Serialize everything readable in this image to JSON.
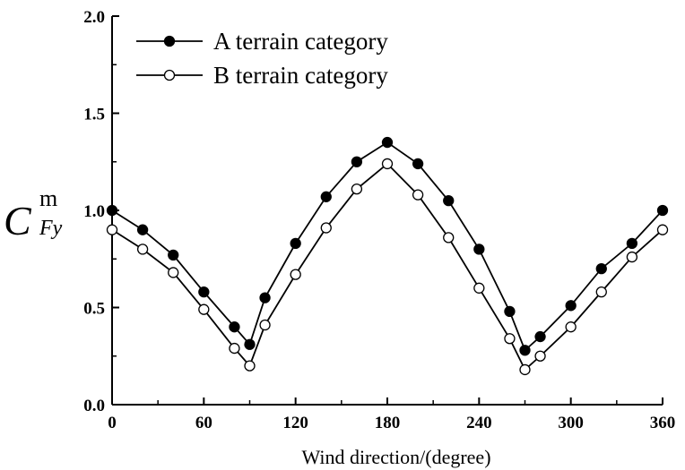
{
  "chart_data": {
    "type": "line",
    "xlabel": "Wind direction/(degree)",
    "ylabel": {
      "main": "C",
      "sup": "m",
      "sub": "Fy"
    },
    "xlim": [
      0,
      360
    ],
    "ylim": [
      0,
      2.0
    ],
    "xticks": [
      0,
      60,
      120,
      180,
      240,
      300,
      360
    ],
    "yticks": [
      "0.0",
      "0.5",
      "1.0",
      "1.5",
      "2.0"
    ],
    "grid": false,
    "legend_position": "top-left",
    "series": [
      {
        "name": "A terrain category",
        "marker": "filled-circle",
        "x": [
          0,
          20,
          40,
          60,
          80,
          90,
          100,
          120,
          140,
          160,
          180,
          200,
          220,
          240,
          260,
          270,
          280,
          300,
          320,
          340,
          360
        ],
        "y": [
          1.0,
          0.9,
          0.77,
          0.58,
          0.4,
          0.31,
          0.55,
          0.83,
          1.07,
          1.25,
          1.35,
          1.24,
          1.05,
          0.8,
          0.48,
          0.28,
          0.35,
          0.51,
          0.7,
          0.83,
          1.0
        ]
      },
      {
        "name": "B terrain category",
        "marker": "open-circle",
        "x": [
          0,
          20,
          40,
          60,
          80,
          90,
          100,
          120,
          140,
          160,
          180,
          200,
          220,
          240,
          260,
          270,
          280,
          300,
          320,
          340,
          360
        ],
        "y": [
          0.9,
          0.8,
          0.68,
          0.49,
          0.29,
          0.2,
          0.41,
          0.67,
          0.91,
          1.11,
          1.24,
          1.08,
          0.86,
          0.6,
          0.34,
          0.18,
          0.25,
          0.4,
          0.58,
          0.76,
          0.9
        ]
      }
    ]
  }
}
